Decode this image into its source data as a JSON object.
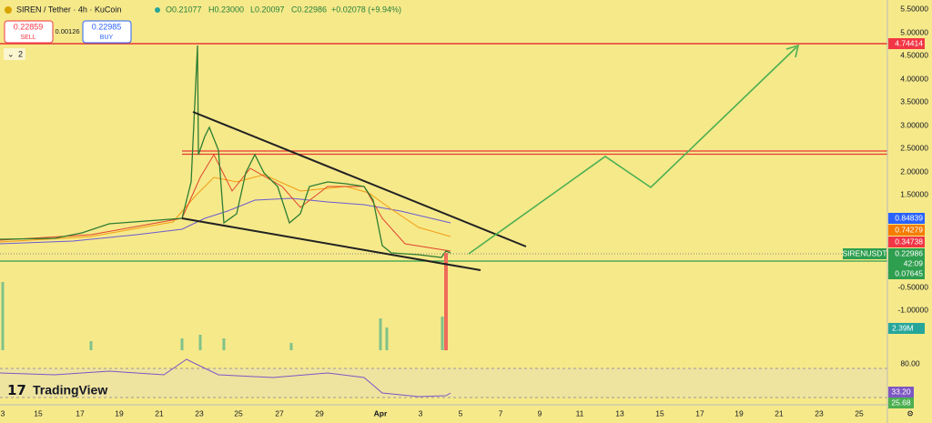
{
  "header": {
    "symbol": "SIREN / Tether · 4h · KuCoin",
    "ohlc": [
      "O0.21077",
      "H0.23000",
      "L0.20097",
      "C0.22986",
      "+0.02078 (+9.94%)"
    ]
  },
  "trade": {
    "sell_price": "0.22859",
    "sell": "SELL",
    "spread": "0.00126",
    "buy_price": "0.22985",
    "buy": "BUY"
  },
  "indicators_count": "2",
  "price_axis": [
    "5.50000",
    "5.00000",
    "4.50000",
    "4.00000",
    "3.50000",
    "3.00000",
    "2.50000",
    "2.00000",
    "1.50000",
    "-0.50000",
    "-1.00000"
  ],
  "price_badges": [
    "4.74414",
    "0.84839",
    "0.74279",
    "0.34738",
    "0.22986",
    "42:09",
    "0.07645"
  ],
  "symbol_label": "SIRENUSDT",
  "volume_badge": "2.39M",
  "rsi_axis": [
    "80.00"
  ],
  "rsi_badges": [
    "33.20",
    "25.68"
  ],
  "date_axis": [
    "3",
    "15",
    "17",
    "19",
    "21",
    "23",
    "25",
    "27",
    "29",
    "Apr",
    "3",
    "5",
    "7",
    "9",
    "11",
    "13",
    "15",
    "17",
    "19",
    "21",
    "23",
    "25"
  ],
  "logo": "TradingView"
}
